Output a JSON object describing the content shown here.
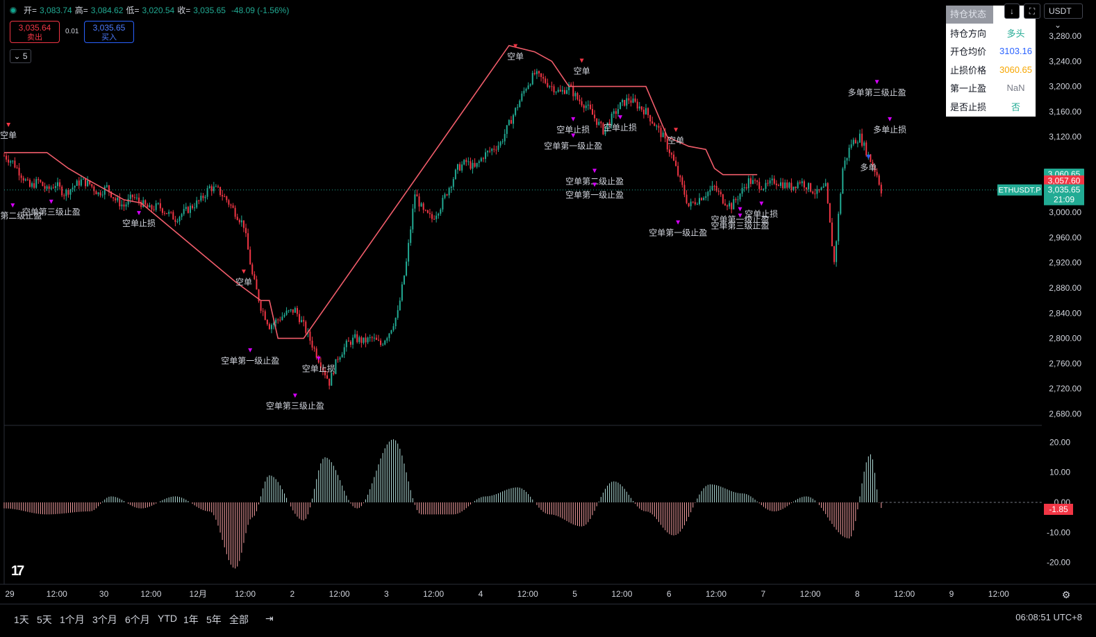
{
  "header": {
    "open_label": "开=",
    "open": "3,083.74",
    "high_label": "高=",
    "high": "3,084.62",
    "low_label": "低=",
    "low": "3,020.54",
    "close_label": "收=",
    "close": "3,035.65",
    "change": "-48.09 (-1.56%)",
    "sell_price": "3,035.64",
    "sell_label": "卖出",
    "spread": "0.01",
    "buy_price": "3,035.65",
    "buy_label": "买入",
    "collapse_label": "5"
  },
  "toolbar": {
    "currency": "USDT",
    "download_icon": "download-icon",
    "fullscreen_icon": "fullscreen-icon"
  },
  "status_panel": {
    "title": "持仓状态",
    "rows": [
      {
        "key": "持仓方向",
        "value": "多头",
        "color": "#22ab94"
      },
      {
        "key": "开仓均价",
        "value": "3103.16",
        "color": "#2962ff"
      },
      {
        "key": "止损价格",
        "value": "3060.65",
        "color": "#f7a600"
      },
      {
        "key": "第一止盈",
        "value": "NaN",
        "color": "#787b86"
      },
      {
        "key": "是否止损",
        "value": "否",
        "color": "#22ab94"
      }
    ]
  },
  "price_axis": {
    "ticks": [
      "3,280.00",
      "3,240.00",
      "3,200.00",
      "3,160.00",
      "3,120.00",
      "3,000.00",
      "2,960.00",
      "2,920.00",
      "2,880.00",
      "2,840.00",
      "2,800.00",
      "2,760.00",
      "2,720.00",
      "2,680.00"
    ],
    "tick_values": [
      3280,
      3240,
      3200,
      3160,
      3120,
      3000,
      2960,
      2920,
      2880,
      2840,
      2800,
      2760,
      2720,
      2680
    ],
    "badge_stop": "3,060.65",
    "badge_stop_color": "#22ab94",
    "badge_red": "3,057.60",
    "badge_red_color": "#f23645",
    "badge_last": "3,035.65",
    "badge_timer": "21:09",
    "symbol_label": "ETHUSDT.P"
  },
  "osc_axis": {
    "ticks": [
      "20.00",
      "10.00",
      "0.00",
      "-10.00",
      "-20.00"
    ],
    "tick_values": [
      20,
      10,
      0,
      -10,
      -20
    ],
    "badge": "-1.85"
  },
  "time_axis": [
    "29",
    "12:00",
    "30",
    "12:00",
    "12月",
    "12:00",
    "2",
    "12:00",
    "3",
    "12:00",
    "4",
    "12:00",
    "5",
    "12:00",
    "6",
    "12:00",
    "7",
    "12:00",
    "8",
    "12:00",
    "9",
    "12:00"
  ],
  "bottombar": {
    "timeframes": [
      "1天",
      "5天",
      "1个月",
      "3个月",
      "6个月",
      "YTD",
      "1年",
      "5年",
      "全部"
    ],
    "clock": "06:08:51 UTC+8",
    "logo": "TV"
  },
  "chart_data": {
    "type": "candlestick",
    "symbol": "ETHUSDT.P",
    "ylim": [
      2660,
      3300
    ],
    "close_path": [
      [
        0,
        3090
      ],
      [
        4,
        3080
      ],
      [
        8,
        3060
      ],
      [
        12,
        3040
      ],
      [
        16,
        3050
      ],
      [
        20,
        3035
      ],
      [
        24,
        3045
      ],
      [
        28,
        3030
      ],
      [
        32,
        3040
      ],
      [
        36,
        3050
      ],
      [
        40,
        3045
      ],
      [
        44,
        3030
      ],
      [
        48,
        3040
      ],
      [
        52,
        3020
      ],
      [
        56,
        3010
      ],
      [
        60,
        3025
      ],
      [
        64,
        3015
      ],
      [
        68,
        3005
      ],
      [
        72,
        3010
      ],
      [
        76,
        3000
      ],
      [
        80,
        2990
      ],
      [
        84,
        3000
      ],
      [
        88,
        3010
      ],
      [
        92,
        3020
      ],
      [
        96,
        3040
      ],
      [
        100,
        3035
      ],
      [
        104,
        3020
      ],
      [
        108,
        3000
      ],
      [
        112,
        2980
      ],
      [
        116,
        2900
      ],
      [
        120,
        2850
      ],
      [
        124,
        2820
      ],
      [
        128,
        2830
      ],
      [
        132,
        2840
      ],
      [
        136,
        2845
      ],
      [
        140,
        2820
      ],
      [
        144,
        2790
      ],
      [
        148,
        2760
      ],
      [
        152,
        2730
      ],
      [
        156,
        2770
      ],
      [
        160,
        2790
      ],
      [
        164,
        2800
      ],
      [
        168,
        2795
      ],
      [
        172,
        2800
      ],
      [
        176,
        2790
      ],
      [
        180,
        2810
      ],
      [
        184,
        2840
      ],
      [
        188,
        2920
      ],
      [
        192,
        3030
      ],
      [
        196,
        3000
      ],
      [
        200,
        2990
      ],
      [
        204,
        3010
      ],
      [
        208,
        3040
      ],
      [
        212,
        3070
      ],
      [
        216,
        3080
      ],
      [
        220,
        3070
      ],
      [
        224,
        3090
      ],
      [
        228,
        3100
      ],
      [
        232,
        3110
      ],
      [
        236,
        3140
      ],
      [
        240,
        3170
      ],
      [
        244,
        3200
      ],
      [
        248,
        3220
      ],
      [
        252,
        3210
      ],
      [
        256,
        3200
      ],
      [
        260,
        3190
      ],
      [
        264,
        3200
      ],
      [
        268,
        3180
      ],
      [
        272,
        3170
      ],
      [
        276,
        3150
      ],
      [
        280,
        3130
      ],
      [
        284,
        3150
      ],
      [
        288,
        3170
      ],
      [
        292,
        3180
      ],
      [
        296,
        3170
      ],
      [
        300,
        3160
      ],
      [
        304,
        3140
      ],
      [
        308,
        3120
      ],
      [
        312,
        3090
      ],
      [
        316,
        3050
      ],
      [
        320,
        3010
      ],
      [
        324,
        3020
      ],
      [
        328,
        3030
      ],
      [
        332,
        3040
      ],
      [
        336,
        3020
      ],
      [
        340,
        3010
      ],
      [
        344,
        3030
      ],
      [
        348,
        3050
      ],
      [
        352,
        3045
      ],
      [
        356,
        3040
      ],
      [
        360,
        3050
      ],
      [
        364,
        3045
      ],
      [
        368,
        3040
      ],
      [
        372,
        3050
      ],
      [
        376,
        3040
      ],
      [
        380,
        3030
      ],
      [
        384,
        3040
      ],
      [
        388,
        2920
      ],
      [
        392,
        3070
      ],
      [
        396,
        3110
      ],
      [
        400,
        3120
      ],
      [
        404,
        3090
      ],
      [
        408,
        3060
      ],
      [
        410,
        3035.65
      ]
    ],
    "stop_line": [
      [
        0,
        3095
      ],
      [
        20,
        3095
      ],
      [
        30,
        3070
      ],
      [
        40,
        3050
      ],
      [
        48,
        3035
      ],
      [
        56,
        3020
      ],
      [
        64,
        3015
      ],
      [
        108,
        2890
      ],
      [
        112,
        2880
      ],
      [
        116,
        2870
      ],
      [
        120,
        2860
      ],
      [
        124,
        2860
      ],
      [
        128,
        2800
      ],
      [
        140,
        2800
      ],
      [
        236,
        3265
      ],
      [
        248,
        3255
      ],
      [
        256,
        3240
      ],
      [
        264,
        3200
      ],
      [
        280,
        3200
      ],
      [
        300,
        3200
      ],
      [
        310,
        3120
      ],
      [
        320,
        3105
      ],
      [
        328,
        3100
      ],
      [
        332,
        3070
      ],
      [
        336,
        3060
      ],
      [
        344,
        3060
      ],
      [
        352,
        3060
      ]
    ],
    "oscillator": {
      "ylim": [
        -25,
        25
      ],
      "peaks": [
        [
          0,
          -2
        ],
        [
          20,
          -4
        ],
        [
          40,
          -3
        ],
        [
          50,
          2
        ],
        [
          64,
          -2
        ],
        [
          80,
          2
        ],
        [
          96,
          -3
        ],
        [
          108,
          -22
        ],
        [
          116,
          -5
        ],
        [
          124,
          9
        ],
        [
          140,
          -6
        ],
        [
          150,
          15
        ],
        [
          165,
          -2
        ],
        [
          182,
          21
        ],
        [
          195,
          -4
        ],
        [
          210,
          -4
        ],
        [
          225,
          2
        ],
        [
          240,
          5
        ],
        [
          255,
          -4
        ],
        [
          270,
          -8
        ],
        [
          285,
          7
        ],
        [
          300,
          -3
        ],
        [
          313,
          -11
        ],
        [
          330,
          6
        ],
        [
          345,
          3
        ],
        [
          360,
          -3
        ],
        [
          375,
          2
        ],
        [
          395,
          -12
        ],
        [
          405,
          16
        ],
        [
          410,
          -1.85
        ]
      ]
    },
    "signals": [
      {
        "label": "空单",
        "i": 2,
        "price": 3118
      },
      {
        "label": "空单第二级止盈",
        "i": 4,
        "price": 2990
      },
      {
        "label": "空单第三级止盈",
        "i": 22,
        "price": 2996
      },
      {
        "label": "空单止损",
        "i": 63,
        "price": 2978
      },
      {
        "label": "空单",
        "i": 112,
        "price": 2885
      },
      {
        "label": "空单第一级止盈",
        "i": 115,
        "price": 2760
      },
      {
        "label": "空单第三级止盈",
        "i": 136,
        "price": 2688
      },
      {
        "label": "空单止损",
        "i": 147,
        "price": 2747
      },
      {
        "label": "空单",
        "i": 239,
        "price": 3243
      },
      {
        "label": "空单",
        "i": 270,
        "price": 3220
      },
      {
        "label": "空单止损",
        "i": 266,
        "price": 3127
      },
      {
        "label": "空单第一级止盈",
        "i": 266,
        "price": 3101
      },
      {
        "label": "空单止损",
        "i": 288,
        "price": 3130
      },
      {
        "label": "空单第二级止盈",
        "i": 276,
        "price": 3045
      },
      {
        "label": "空单第一级止盈",
        "i": 276,
        "price": 3023
      },
      {
        "label": "空单",
        "i": 314,
        "price": 3110
      },
      {
        "label": "空单第一级止盈",
        "i": 315,
        "price": 2963
      },
      {
        "label": "空单第一级止盈",
        "i": 344,
        "price": 2984
      },
      {
        "label": "空单第三级止盈",
        "i": 344,
        "price": 2974
      },
      {
        "label": "空单止损",
        "i": 354,
        "price": 2993
      },
      {
        "label": "多单",
        "i": 404,
        "price": 3067
      },
      {
        "label": "多单止损",
        "i": 414,
        "price": 3127
      },
      {
        "label": "多单第三级止盈",
        "i": 408,
        "price": 3186
      }
    ]
  }
}
